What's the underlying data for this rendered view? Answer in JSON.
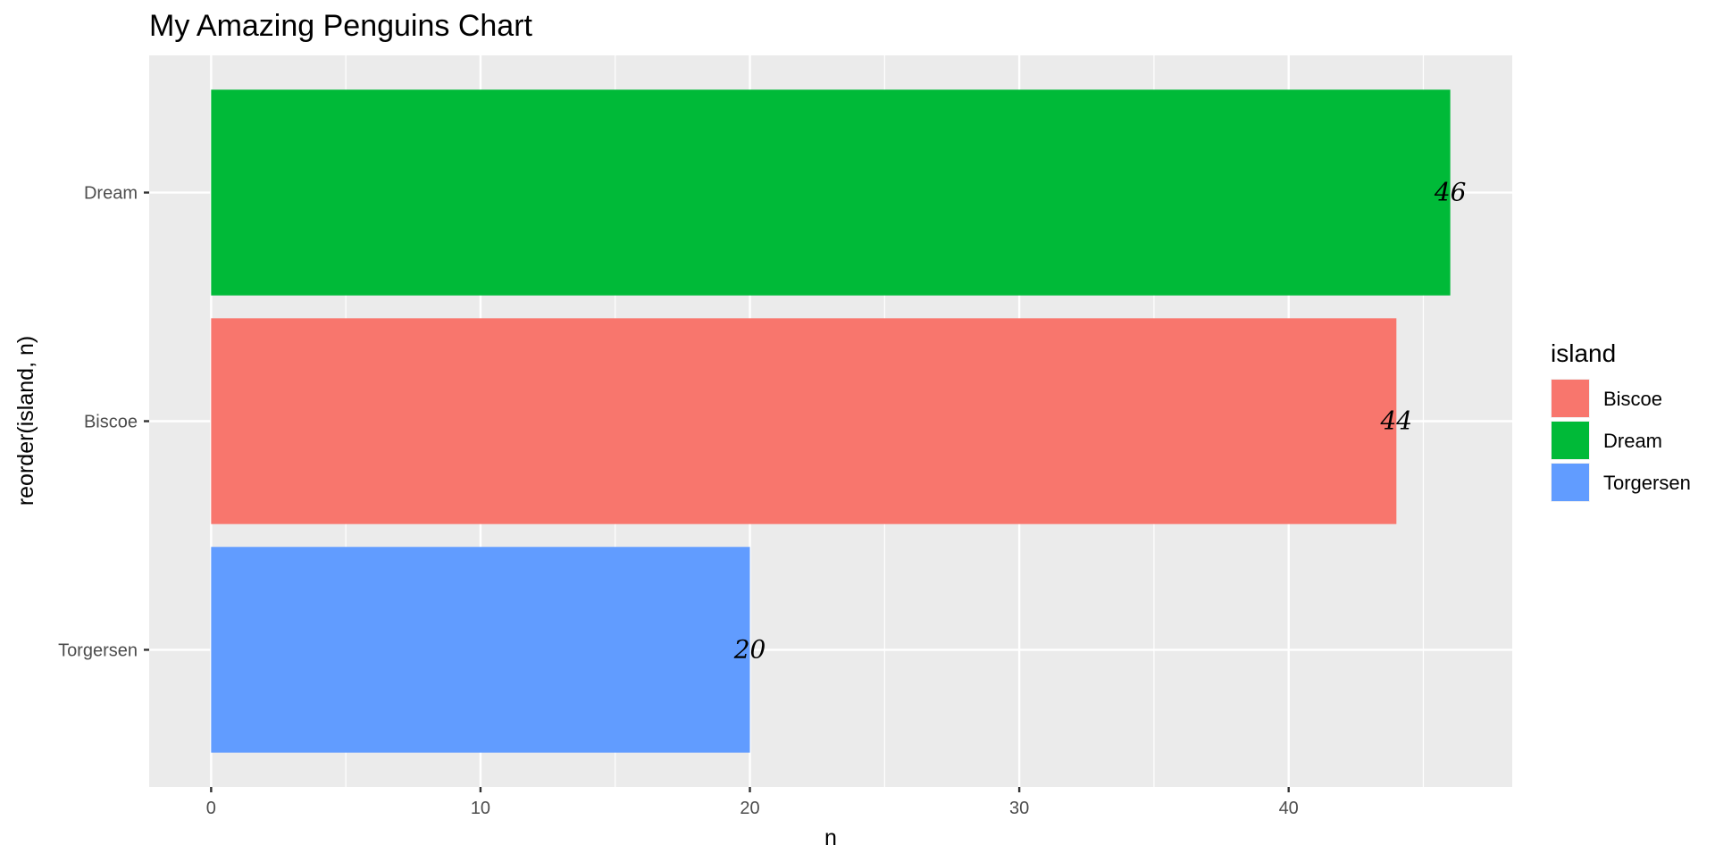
{
  "chart_data": {
    "type": "bar",
    "orientation": "horizontal",
    "title": "My Amazing Penguins Chart",
    "xlabel": "n",
    "ylabel": "reorder(island, n)",
    "categories": [
      "Torgersen",
      "Biscoe",
      "Dream"
    ],
    "values": [
      20,
      44,
      46
    ],
    "xlim": [
      -2.3,
      48.3
    ],
    "x_ticks": [
      0,
      10,
      20,
      30,
      40
    ],
    "x_tick_labels": [
      "0",
      "10",
      "20",
      "30",
      "40"
    ],
    "x_minor_ticks": [
      5,
      15,
      25,
      35,
      45
    ],
    "data_labels": [
      "20",
      "44",
      "46"
    ],
    "grid": true,
    "panel_background": "#ebebeb",
    "grid_color": "#ffffff",
    "legend": {
      "title": "island",
      "placement": "right",
      "items": [
        {
          "label": "Biscoe",
          "color": "#F8766D"
        },
        {
          "label": "Dream",
          "color": "#00BA38"
        },
        {
          "label": "Torgersen",
          "color": "#619CFF"
        }
      ]
    },
    "colors": {
      "Biscoe": "#F8766D",
      "Dream": "#00BA38",
      "Torgersen": "#619CFF"
    }
  }
}
